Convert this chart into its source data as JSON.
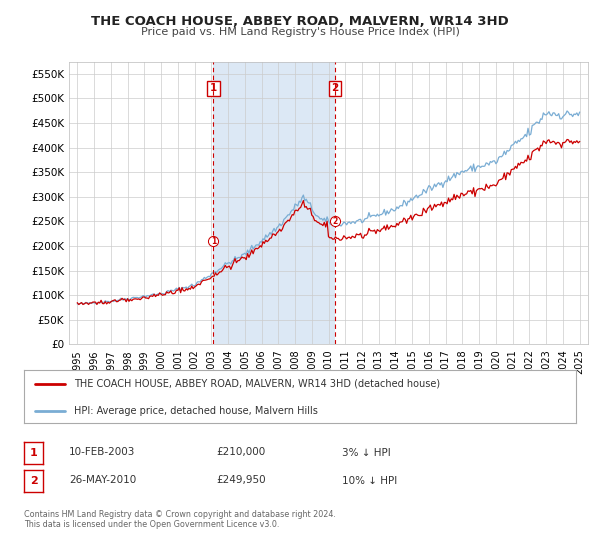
{
  "title": "THE COACH HOUSE, ABBEY ROAD, MALVERN, WR14 3HD",
  "subtitle": "Price paid vs. HM Land Registry's House Price Index (HPI)",
  "legend_line1": "THE COACH HOUSE, ABBEY ROAD, MALVERN, WR14 3HD (detached house)",
  "legend_line2": "HPI: Average price, detached house, Malvern Hills",
  "footnote1": "Contains HM Land Registry data © Crown copyright and database right 2024.",
  "footnote2": "This data is licensed under the Open Government Licence v3.0.",
  "transaction1_label": "1",
  "transaction1_date": "10-FEB-2003",
  "transaction1_price": "£210,000",
  "transaction1_hpi": "3% ↓ HPI",
  "transaction2_label": "2",
  "transaction2_date": "26-MAY-2010",
  "transaction2_price": "£249,950",
  "transaction2_hpi": "10% ↓ HPI",
  "marker1_x": 2003.12,
  "marker1_y": 210000,
  "marker2_x": 2010.4,
  "marker2_y": 249950,
  "vline1_x": 2003.12,
  "vline2_x": 2010.4,
  "xlim": [
    1994.5,
    2025.5
  ],
  "ylim": [
    0,
    575000
  ],
  "yticks": [
    0,
    50000,
    100000,
    150000,
    200000,
    250000,
    300000,
    350000,
    400000,
    450000,
    500000,
    550000
  ],
  "ytick_labels": [
    "£0",
    "£50K",
    "£100K",
    "£150K",
    "£200K",
    "£250K",
    "£300K",
    "£350K",
    "£400K",
    "£450K",
    "£500K",
    "£550K"
  ],
  "xticks": [
    1995,
    1996,
    1997,
    1998,
    1999,
    2000,
    2001,
    2002,
    2003,
    2004,
    2005,
    2006,
    2007,
    2008,
    2009,
    2010,
    2011,
    2012,
    2013,
    2014,
    2015,
    2016,
    2017,
    2018,
    2019,
    2020,
    2021,
    2022,
    2023,
    2024,
    2025
  ],
  "red_color": "#cc0000",
  "blue_color": "#7aadd4",
  "plot_bg": "#ffffff",
  "highlight_bg": "#dce8f5",
  "grid_color": "#cccccc",
  "title_color": "#222222",
  "subtitle_color": "#444444",
  "text_color": "#333333",
  "footnote_color": "#666666"
}
